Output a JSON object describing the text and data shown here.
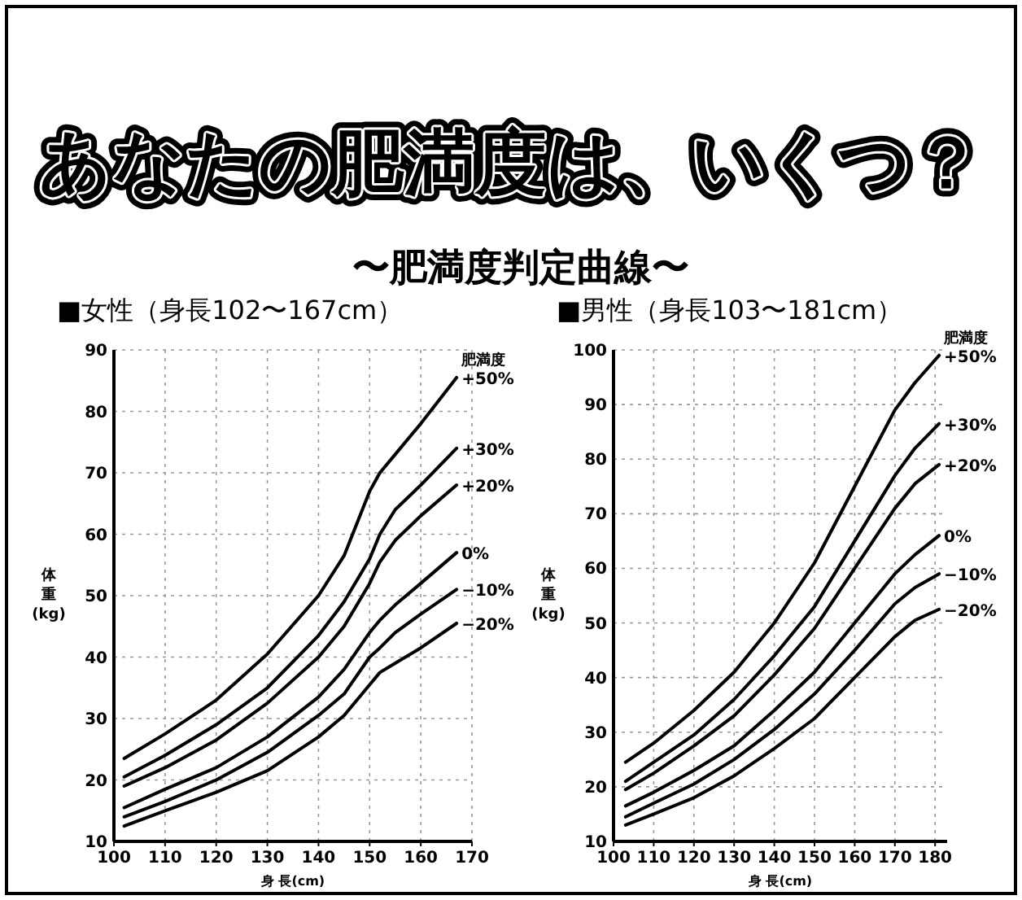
{
  "chart_data": [
    {
      "type": "other",
      "title": "あなたの肥満度は、いくつ？",
      "subtitle": "〜肥満度判定曲線〜"
    },
    {
      "type": "line",
      "title": "■女性（身長102〜167cm）",
      "xlabel": "身 長(cm)",
      "ylabel": "体重(kg)",
      "xlim": [
        100,
        170
      ],
      "xticks": [
        100,
        110,
        120,
        130,
        140,
        150,
        160,
        170
      ],
      "ylim": [
        10,
        90
      ],
      "yticks": [
        10,
        20,
        30,
        40,
        50,
        60,
        70,
        80,
        90
      ],
      "grid": true,
      "x": [
        102,
        110,
        120,
        130,
        140,
        145,
        150,
        152,
        155,
        160,
        167
      ],
      "series": [
        {
          "name": "+50%",
          "color": "#000000",
          "values": [
            23.5,
            27.5,
            33,
            40.5,
            50,
            56.5,
            67,
            70,
            73,
            78,
            85.5
          ]
        },
        {
          "name": "+30%",
          "color": "#000000",
          "values": [
            20.5,
            24,
            29,
            35,
            43.5,
            49,
            56,
            60,
            64,
            68,
            74
          ]
        },
        {
          "name": "+20%",
          "color": "#000000",
          "values": [
            19,
            22,
            26.5,
            32.5,
            40,
            45,
            52,
            55.5,
            59,
            63,
            68
          ]
        },
        {
          "name": "0%",
          "color": "#000000",
          "values": [
            15.5,
            18.5,
            22,
            27,
            33.5,
            38,
            44,
            46,
            48.5,
            52,
            57
          ]
        },
        {
          "name": "−10%",
          "color": "#000000",
          "values": [
            14,
            16.5,
            20,
            24.5,
            30.5,
            34,
            40,
            41.5,
            44,
            47,
            51
          ]
        },
        {
          "name": "−20%",
          "color": "#000000",
          "values": [
            12.5,
            15,
            18,
            21.5,
            27,
            30.5,
            35.5,
            37.5,
            39,
            41.5,
            45.5
          ]
        }
      ],
      "annotations": [
        "肥満度"
      ]
    },
    {
      "type": "line",
      "title": "■男性（身長103〜181cm）",
      "xlabel": "身 長(cm)",
      "ylabel": "体重(kg)",
      "xlim": [
        100,
        183
      ],
      "xticks": [
        100,
        110,
        120,
        130,
        140,
        150,
        160,
        170,
        180
      ],
      "ylim": [
        10,
        100
      ],
      "yticks": [
        10,
        20,
        30,
        40,
        50,
        60,
        70,
        80,
        90,
        100
      ],
      "grid": true,
      "x": [
        103,
        110,
        120,
        130,
        140,
        150,
        160,
        170,
        175,
        181
      ],
      "series": [
        {
          "name": "+50%",
          "color": "#000000",
          "values": [
            24.5,
            28,
            34,
            41,
            50,
            61,
            75,
            89,
            94,
            99
          ]
        },
        {
          "name": "+30%",
          "color": "#000000",
          "values": [
            21,
            24.5,
            29.5,
            36,
            44,
            53,
            65,
            77,
            82,
            86.5
          ]
        },
        {
          "name": "+20%",
          "color": "#000000",
          "values": [
            19.5,
            22.5,
            27.5,
            33,
            40.5,
            49,
            60,
            71,
            75.5,
            79
          ]
        },
        {
          "name": "0%",
          "color": "#000000",
          "values": [
            16.5,
            19,
            23,
            27.5,
            34,
            41,
            50,
            59,
            62.5,
            66
          ]
        },
        {
          "name": "−10%",
          "color": "#000000",
          "values": [
            14.5,
            17,
            20.5,
            25,
            30.5,
            37,
            45,
            53.5,
            56.5,
            59
          ]
        },
        {
          "name": "−20%",
          "color": "#000000",
          "values": [
            13,
            15,
            18,
            22,
            27,
            32.5,
            40,
            47.5,
            50.5,
            52.5
          ]
        }
      ],
      "annotations": [
        "肥満度"
      ]
    }
  ]
}
